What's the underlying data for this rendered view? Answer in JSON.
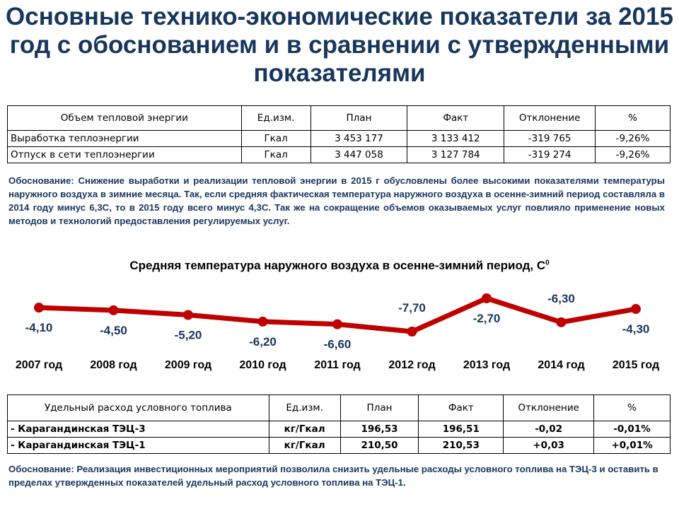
{
  "title": "Основные технико-экономические показатели за 2015 год с обоснованием и в сравнении с утвержденными показателями",
  "table1": {
    "headers": [
      "Объем тепловой энергии",
      "Ед.изм.",
      "План",
      "Факт",
      "Отклонение",
      "%"
    ],
    "rows": [
      [
        "Выработка теплоэнергии",
        "Гкал",
        "3 453 177",
        "3 133 412",
        "-319 765",
        "-9,26%"
      ],
      [
        "Отпуск в сети теплоэнергии",
        "Гкал",
        "3 447 058",
        "3 127 784",
        "-319 274",
        "-9,26%"
      ]
    ]
  },
  "note1": "Обоснование: Снижение выработки и реализации тепловой энергии в 2015 г обусловлены более высокими показателями температуры наружного воздуха в зимние месяца. Так, если средняя фактическая температура наружного воздуха в осенне-зимний период составляла в 2014 году  минус 6,3С, то в 2015 году всего минус 4,3С. Так же на сокращение объемов оказываемых услуг повлияло применение новых методов и технологий предоставления регулируемых услуг.",
  "chart_data": {
    "type": "line",
    "title": "Средняя температура наружного воздуха в осенне-зимний период, С",
    "title_sup": "0",
    "categories": [
      "2007 год",
      "2008 год",
      "2009 год",
      "2010 год",
      "2011 год",
      "2012 год",
      "2013 год",
      "2014 год",
      "2015 год"
    ],
    "values": [
      -4.1,
      -4.5,
      -5.2,
      -6.2,
      -6.6,
      -7.7,
      -2.7,
      -6.3,
      -4.3
    ],
    "value_labels": [
      "-4,10",
      "-4,50",
      "-5,20",
      "-6,20",
      "-6,60",
      "-7,70",
      "-2,70",
      "-6,30",
      "-4,30"
    ],
    "label_position": [
      "below",
      "below",
      "below",
      "below",
      "below",
      "above",
      "below",
      "above",
      "below"
    ],
    "line_color": "#c00000",
    "grid": false,
    "legend": "none"
  },
  "table2": {
    "headers": [
      "Удельный расход условного топлива",
      "Ед.изм.",
      "План",
      "Факт",
      "Отклонение",
      "%"
    ],
    "rows": [
      [
        "- Карагандинская ТЭЦ-3",
        "кг/Гкал",
        "196,53",
        "196,51",
        "-0,02",
        "-0,01%"
      ],
      [
        "- Карагандинская ТЭЦ-1",
        "кг/Гкал",
        "210,50",
        "210,53",
        "+0,03",
        "+0,01%"
      ]
    ]
  },
  "note2": "Обоснование: Реализация инвестиционных мероприятий позволила снизить удельные расходы условного топлива на ТЭЦ-3 и оставить в пределах утвержденных показателей удельный расход условного топлива на ТЭЦ-1."
}
